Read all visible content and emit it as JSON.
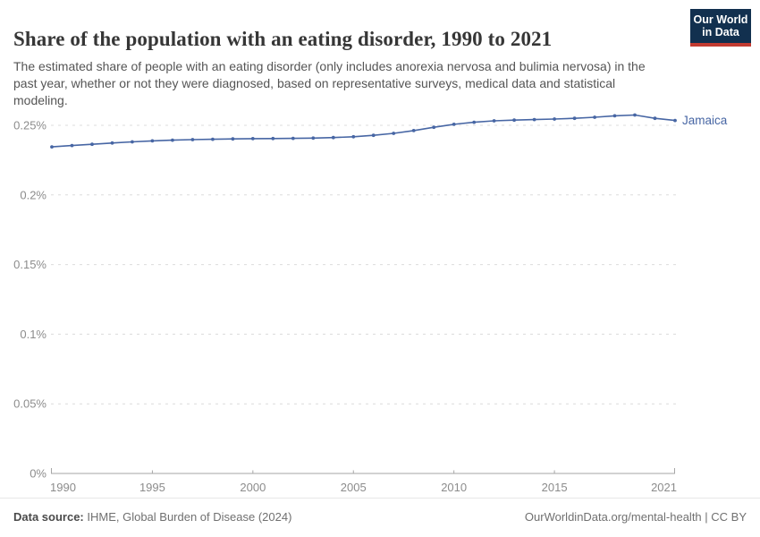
{
  "header": {
    "title": "Share of the population with an eating disorder, 1990 to 2021",
    "subtitle": "The estimated share of people with an eating disorder (only includes anorexia nervosa and bulimia nervosa) in the past year, whether or not they were diagnosed, based on representative surveys, medical data and statistical modeling.",
    "logo": {
      "line1": "Our World",
      "line2": "in Data",
      "bg_color": "#12304f",
      "stripe_color": "#c23b31",
      "text_color": "#ffffff"
    }
  },
  "chart_data": {
    "type": "line",
    "title": "Share of the population with an eating disorder, 1990 to 2021",
    "xlabel": "",
    "ylabel": "",
    "unit": "%",
    "xlim": [
      1990,
      2021
    ],
    "ylim": [
      0,
      0.2625
    ],
    "grid": "horizontal-dashed",
    "legend_position": "line-end-label",
    "x": [
      1990,
      1991,
      1992,
      1993,
      1994,
      1995,
      1996,
      1997,
      1998,
      1999,
      2000,
      2001,
      2002,
      2003,
      2004,
      2005,
      2006,
      2007,
      2008,
      2009,
      2010,
      2011,
      2012,
      2013,
      2014,
      2015,
      2016,
      2017,
      2018,
      2019,
      2020,
      2021
    ],
    "series": [
      {
        "name": "Jamaica",
        "color": "#4766a4",
        "values": [
          0.2345,
          0.2355,
          0.2364,
          0.2373,
          0.2381,
          0.2388,
          0.2393,
          0.2397,
          0.24,
          0.2402,
          0.2404,
          0.2405,
          0.2406,
          0.2408,
          0.2412,
          0.2418,
          0.2428,
          0.2442,
          0.2462,
          0.2486,
          0.2507,
          0.2522,
          0.2532,
          0.2537,
          0.2541,
          0.2545,
          0.255,
          0.2558,
          0.2568,
          0.2574,
          0.255,
          0.2535
        ]
      }
    ],
    "x_ticks": [
      1990,
      1995,
      2000,
      2005,
      2010,
      2015,
      2021
    ],
    "y_ticks": [
      0,
      0.05,
      0.1,
      0.15,
      0.2,
      0.25
    ],
    "y_tick_labels": [
      "0%",
      "0.05%",
      "0.1%",
      "0.15%",
      "0.2%",
      "0.25%"
    ],
    "grid_color": "#dcdcdc",
    "axis_color": "#a6a6a6",
    "tick_text_color": "#8c8c8c"
  },
  "footer": {
    "source_label": "Data source:",
    "source_text": " IHME, Global Burden of Disease (2024)",
    "right_text": "OurWorldinData.org/mental-health | CC BY"
  }
}
